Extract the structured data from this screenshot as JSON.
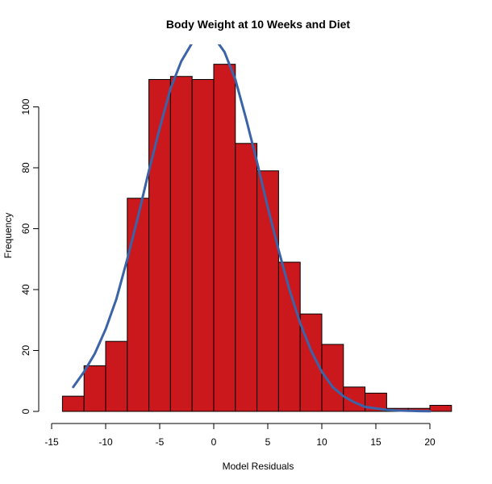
{
  "chart_data": {
    "type": "bar",
    "title": "Body Weight at 10 Weeks and Diet",
    "xlabel": "Model Residuals",
    "ylabel": "Frequency",
    "xlim": [
      -14,
      22
    ],
    "ylim": [
      0,
      120
    ],
    "x_ticks": [
      -15,
      -10,
      -5,
      0,
      5,
      10,
      15,
      20
    ],
    "y_ticks": [
      0,
      20,
      40,
      60,
      80,
      100
    ],
    "bin_edges": [
      -14,
      -12,
      -10,
      -8,
      -6,
      -4,
      -2,
      0,
      2,
      4,
      6,
      8,
      10,
      12,
      14,
      16,
      18,
      20,
      22
    ],
    "values": [
      5,
      15,
      23,
      70,
      109,
      110,
      109,
      114,
      88,
      79,
      49,
      32,
      22,
      8,
      6,
      1,
      1,
      2
    ],
    "bar_color": "#cb181d",
    "bar_edge_color": "#000000",
    "curve": {
      "name": "normal density",
      "color": "#3b63a8",
      "x": [
        -13,
        -12,
        -11,
        -10,
        -9,
        -8,
        -7,
        -6,
        -5,
        -4,
        -3,
        -2,
        -1,
        0,
        1,
        2,
        3,
        4,
        5,
        6,
        7,
        8,
        9,
        10,
        11,
        12,
        13,
        14,
        15,
        16,
        17,
        18,
        19,
        20
      ],
      "y": [
        8,
        13,
        19,
        27,
        37,
        50,
        64,
        79,
        93,
        106,
        115,
        121,
        124,
        123,
        118,
        109,
        96,
        82,
        67,
        53,
        40,
        29,
        20,
        13,
        8,
        5,
        3,
        1.5,
        1,
        0.5,
        0.3,
        0.2,
        0.1,
        0.05
      ]
    }
  }
}
